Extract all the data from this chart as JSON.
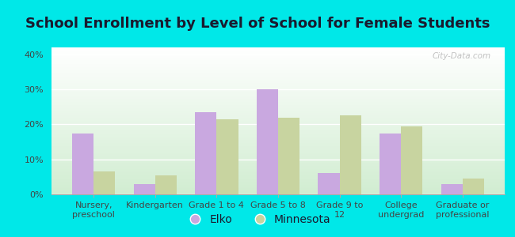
{
  "title": "School Enrollment by Level of School for Female Students",
  "categories": [
    "Nursery,\npreschool",
    "Kindergarten",
    "Grade 1 to 4",
    "Grade 5 to 8",
    "Grade 9 to\n12",
    "College\nundergrad",
    "Graduate or\nprofessional"
  ],
  "elko": [
    17.5,
    3.0,
    23.5,
    30.0,
    6.0,
    17.5,
    3.0
  ],
  "minnesota": [
    6.5,
    5.5,
    21.5,
    22.0,
    22.5,
    19.5,
    4.5
  ],
  "elko_color": "#c9a8e0",
  "minnesota_color": "#c8d4a0",
  "background_outer": "#00e8e8",
  "ylim": [
    0,
    42
  ],
  "yticks": [
    0,
    10,
    20,
    30,
    40
  ],
  "ytick_labels": [
    "0%",
    "10%",
    "20%",
    "30%",
    "40%"
  ],
  "bar_width": 0.35,
  "title_fontsize": 13,
  "tick_fontsize": 8,
  "legend_fontsize": 10,
  "watermark": "City-Data.com"
}
